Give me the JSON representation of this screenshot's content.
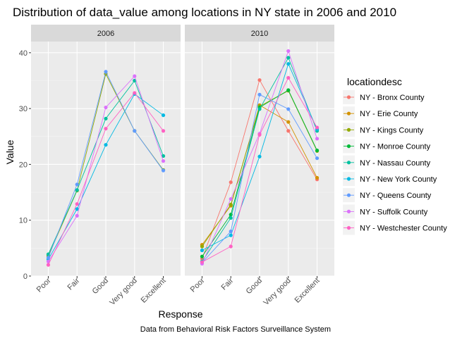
{
  "chart_data": {
    "type": "line",
    "title": "Distribution of data_value among locations in NY state in 2006 and 2010",
    "xlabel": "Response",
    "ylabel": "Value",
    "caption": "Data from Behavioral Risk Factors Surveillance System",
    "categories": [
      "Poor",
      "Fair",
      "Good",
      "Very good",
      "Excellent"
    ],
    "yticks": [
      0,
      10,
      20,
      30,
      40
    ],
    "ylim": [
      0,
      42
    ],
    "grid": true,
    "legend": {
      "title": "locationdesc",
      "placement": "right",
      "entries": [
        {
          "name": "NY - Bronx County",
          "color": "#F8766D"
        },
        {
          "name": "NY - Erie County",
          "color": "#D39200"
        },
        {
          "name": "NY - Kings County",
          "color": "#93AA00"
        },
        {
          "name": "NY - Monroe County",
          "color": "#00BA38"
        },
        {
          "name": "NY - Nassau County",
          "color": "#00C19F"
        },
        {
          "name": "NY - New York County",
          "color": "#00B9E3"
        },
        {
          "name": "NY - Queens County",
          "color": "#619CFF"
        },
        {
          "name": "NY - Suffolk County",
          "color": "#DB72FB"
        },
        {
          "name": "NY - Westchester County",
          "color": "#FF61C3"
        }
      ]
    },
    "panels": [
      {
        "label": "2006",
        "series": [
          {
            "name": "NY - Kings County",
            "color": "#93AA00",
            "values": [
              3.6,
              15.3,
              36.2,
              26.0,
              19.0
            ]
          },
          {
            "name": "NY - Nassau County",
            "color": "#00C19F",
            "values": [
              3.9,
              15.4,
              28.2,
              35.0,
              21.5
            ]
          },
          {
            "name": "NY - New York County",
            "color": "#00B9E3",
            "values": [
              3.0,
              12.0,
              23.5,
              32.6,
              28.8
            ]
          },
          {
            "name": "NY - Queens County",
            "color": "#619CFF",
            "values": [
              3.3,
              16.4,
              36.6,
              26.0,
              18.9
            ]
          },
          {
            "name": "NY - Suffolk County",
            "color": "#DB72FB",
            "values": [
              2.6,
              10.8,
              30.2,
              35.8,
              20.6
            ]
          },
          {
            "name": "NY - Westchester County",
            "color": "#FF61C3",
            "values": [
              2.0,
              12.9,
              26.4,
              32.8,
              26.0
            ]
          }
        ]
      },
      {
        "label": "2010",
        "series": [
          {
            "name": "NY - Bronx County",
            "color": "#F8766D",
            "values": [
              3.1,
              16.8,
              35.1,
              26.0,
              17.3
            ]
          },
          {
            "name": "NY - Erie County",
            "color": "#D39200",
            "values": [
              5.6,
              12.6,
              30.6,
              27.6,
              17.6
            ]
          },
          {
            "name": "NY - Kings County",
            "color": "#93AA00",
            "values": [
              5.3,
              12.8,
              30.4,
              33.2,
              22.4
            ]
          },
          {
            "name": "NY - Monroe County",
            "color": "#00BA38",
            "values": [
              3.5,
              11.0,
              30.2,
              33.3,
              22.5
            ]
          },
          {
            "name": "NY - Nassau County",
            "color": "#00C19F",
            "values": [
              2.6,
              10.4,
              29.9,
              39.1,
              26.0
            ]
          },
          {
            "name": "NY - New York County",
            "color": "#00B9E3",
            "values": [
              4.6,
              7.3,
              21.4,
              38.0,
              26.3
            ]
          },
          {
            "name": "NY - Queens County",
            "color": "#619CFF",
            "values": [
              2.4,
              8.0,
              32.5,
              29.9,
              21.1
            ]
          },
          {
            "name": "NY - Suffolk County",
            "color": "#DB72FB",
            "values": [
              2.2,
              13.8,
              25.5,
              40.3,
              24.6
            ]
          },
          {
            "name": "NY - Westchester County",
            "color": "#FF61C3",
            "values": [
              2.5,
              5.3,
              25.3,
              35.5,
              26.6
            ]
          }
        ]
      }
    ]
  }
}
